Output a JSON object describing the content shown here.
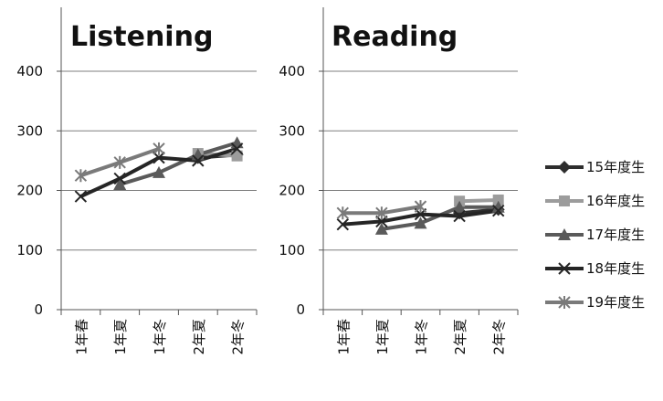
{
  "chart_data": [
    {
      "type": "line",
      "title": "Listening",
      "categories": [
        "1年春",
        "1年夏",
        "1年冬",
        "2年夏",
        "2年冬"
      ],
      "ylim": [
        0,
        400
      ],
      "yticks": [
        0,
        100,
        200,
        300,
        400
      ],
      "grid": true,
      "series": [
        {
          "name": "15年度生",
          "values": [
            null,
            null,
            null,
            255,
            260
          ]
        },
        {
          "name": "16年度生",
          "values": [
            null,
            null,
            null,
            262,
            258
          ]
        },
        {
          "name": "17年度生",
          "values": [
            null,
            210,
            230,
            260,
            280
          ]
        },
        {
          "name": "18年度生",
          "values": [
            190,
            220,
            255,
            250,
            270
          ]
        },
        {
          "name": "19年度生",
          "values": [
            225,
            247,
            270,
            null,
            null
          ]
        }
      ]
    },
    {
      "type": "line",
      "title": "Reading",
      "categories": [
        "1年春",
        "1年夏",
        "1年冬",
        "2年夏",
        "2年冬"
      ],
      "ylim": [
        0,
        400
      ],
      "yticks": [
        0,
        100,
        200,
        300,
        400
      ],
      "grid": true,
      "series": [
        {
          "name": "15年度生",
          "values": [
            null,
            null,
            null,
            162,
            168
          ]
        },
        {
          "name": "16年度生",
          "values": [
            null,
            null,
            null,
            182,
            184
          ]
        },
        {
          "name": "17年度生",
          "values": [
            null,
            135,
            145,
            172,
            172
          ]
        },
        {
          "name": "18年度生",
          "values": [
            143,
            148,
            160,
            157,
            166
          ]
        },
        {
          "name": "19年度生",
          "values": [
            162,
            162,
            173,
            null,
            null
          ]
        }
      ]
    }
  ],
  "legend": {
    "position": "right",
    "items": [
      {
        "label": "15年度生",
        "color": "#2e2e2e",
        "marker": "diamond"
      },
      {
        "label": "16年度生",
        "color": "#9c9c9c",
        "marker": "square"
      },
      {
        "label": "17年度生",
        "color": "#5a5a5a",
        "marker": "triangle"
      },
      {
        "label": "18年度生",
        "color": "#252525",
        "marker": "x"
      },
      {
        "label": "19年度生",
        "color": "#7a7a7a",
        "marker": "star"
      }
    ]
  }
}
